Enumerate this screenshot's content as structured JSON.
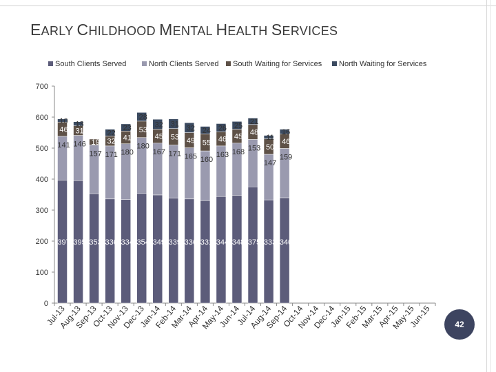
{
  "page": {
    "title_parts": [
      {
        "big": "E",
        "small": "ARLY "
      },
      {
        "big": "C",
        "small": "HILDHOOD "
      },
      {
        "big": "M",
        "small": "ENTAL "
      },
      {
        "big": "H",
        "small": "EALTH "
      },
      {
        "big": "S",
        "small": "ERVICES"
      }
    ],
    "page_number": "42"
  },
  "colors": {
    "south_clients": "#5c5c7a",
    "north_clients": "#9a9aaf",
    "south_waiting": "#5e5147",
    "north_waiting": "#3b4a60",
    "axis": "#888888",
    "text": "#333333",
    "badge": "#3d4460"
  },
  "chart_data": {
    "type": "bar",
    "stacked": true,
    "categories": [
      "Jul-13",
      "Aug-13",
      "Sep-13",
      "Oct-13",
      "Nov-13",
      "Dec-13",
      "Jan-14",
      "Feb-14",
      "Mar-14",
      "Apr-14",
      "May-14",
      "Jun-14",
      "Jul-14",
      "Aug-14",
      "Sep-14",
      "Oct-14",
      "Nov-14",
      "Dec-14",
      "Jan-15",
      "Feb-15",
      "Mar-15",
      "Apr-15",
      "May-15",
      "Jun-15"
    ],
    "series": [
      {
        "name": "South Clients Served",
        "values": [
          397,
          395,
          353,
          336,
          334,
          354,
          349,
          339,
          336,
          331,
          344,
          348,
          375,
          333,
          340,
          null,
          null,
          null,
          null,
          null,
          null,
          null,
          null,
          null
        ]
      },
      {
        "name": "North Clients Served",
        "values": [
          141,
          146,
          157,
          171,
          180,
          180,
          167,
          171,
          165,
          160,
          163,
          168,
          153,
          147,
          159,
          null,
          null,
          null,
          null,
          null,
          null,
          null,
          null,
          null
        ]
      },
      {
        "name": "South Waiting for Services",
        "values": [
          46,
          31,
          19,
          32,
          41,
          53,
          45,
          53,
          49,
          55,
          46,
          45,
          48,
          50,
          46,
          null,
          null,
          null,
          null,
          null,
          null,
          null,
          null,
          null
        ]
      },
      {
        "name": "North Waiting for Services",
        "values": [
          10,
          13,
          null,
          22,
          23,
          28,
          32,
          31,
          32,
          24,
          26,
          25,
          21,
          11,
          16,
          null,
          null,
          null,
          null,
          null,
          null,
          null,
          null,
          null
        ]
      }
    ],
    "ylim": [
      0,
      700
    ],
    "yticks": [
      0,
      100,
      200,
      300,
      400,
      500,
      600,
      700
    ],
    "legend_position": "top",
    "grid": false
  }
}
